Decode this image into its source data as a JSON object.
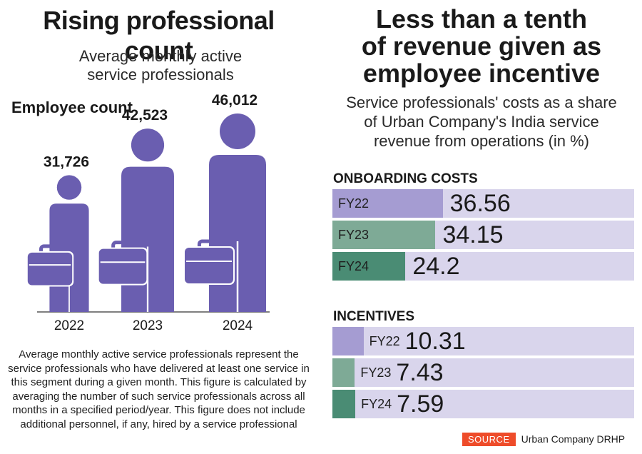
{
  "left_panel": {
    "title": "Rising professional count",
    "subtitle_line1": "Average monthly active",
    "subtitle_line2": "service professionals",
    "employee_label": "Employee count",
    "footnote": "Average monthly active service professionals represent the service professionals who have delivered at least one service in this segment during a given month. This figure is calculated by averaging the number of such service professionals across all months in a specified period/year. This figure does not include additional personnel, if any, hired by a service professional"
  },
  "right_panel": {
    "title_line1": "Less than a tenth",
    "title_line2": "of revenue given as",
    "title_line3": "employee incentive",
    "subtitle_line1": "Service professionals' costs as a share",
    "subtitle_line2": "of Urban Company's India service",
    "subtitle_line3": "revenue from operations (in %)"
  },
  "source": {
    "tag": "SOURCE",
    "text": "Urban Company DRHP"
  },
  "colors": {
    "figure": "#6a5eb0",
    "track": "#d9d5ec",
    "fy22": "#a59cd2",
    "fy23": "#7eaa96",
    "fy24": "#4a8c74",
    "source": "#ee4c2a"
  },
  "chart_data": [
    {
      "type": "bar",
      "title": "Rising professional count",
      "subtitle": "Average monthly active service professionals",
      "ylabel": "Employee count",
      "categories": [
        "2022",
        "2023",
        "2024"
      ],
      "values": [
        31726,
        42523,
        46012
      ],
      "value_labels": [
        "31,726",
        "42,523",
        "46,012"
      ]
    },
    {
      "type": "bar",
      "orientation": "horizontal",
      "title": "ONBOARDING COSTS",
      "categories": [
        "FY22",
        "FY23",
        "FY24"
      ],
      "values": [
        36.56,
        34.15,
        24.2
      ],
      "value_labels": [
        "36.56",
        "34.15",
        "24.2"
      ],
      "xlim": [
        0,
        100
      ]
    },
    {
      "type": "bar",
      "orientation": "horizontal",
      "title": "INCENTIVES",
      "categories": [
        "FY22",
        "FY23",
        "FY24"
      ],
      "values": [
        10.31,
        7.43,
        7.59
      ],
      "value_labels": [
        "10.31",
        "7.43",
        "7.59"
      ],
      "xlim": [
        0,
        100
      ]
    }
  ]
}
